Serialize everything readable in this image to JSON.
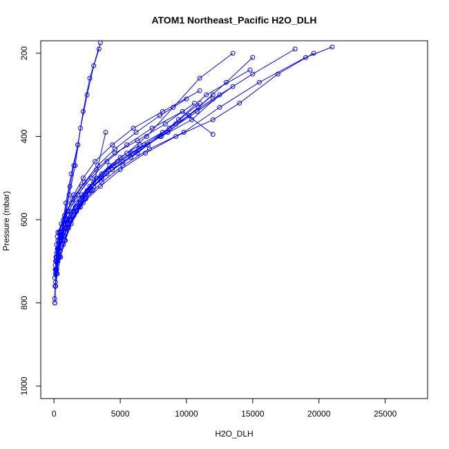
{
  "chart_data": {
    "type": "line",
    "title": "ATOM1 Northeast_Pacific H2O_DLH",
    "xlabel": "H2O_DLH",
    "ylabel": "Pressure (mbar)",
    "x_axis": {
      "range": [
        -1000,
        28200
      ],
      "ticks": [
        0,
        5000,
        10000,
        15000,
        20000,
        25000
      ]
    },
    "y_axis": {
      "range": [
        1030,
        170
      ],
      "reversed": true,
      "ticks": [
        200,
        400,
        600,
        800,
        1000
      ]
    },
    "grid": false,
    "legend": "none",
    "marker": "open-circle",
    "series_color": "#0000ff",
    "series": [
      {
        "x": [
          60,
          120,
          180,
          260,
          400,
          600,
          900,
          1300,
          1800,
          2200,
          2700,
          3500
        ],
        "y": [
          800,
          760,
          730,
          700,
          670,
          620,
          560,
          490,
          420,
          340,
          260,
          175
        ]
      },
      {
        "x": [
          50,
          110,
          200,
          330,
          520,
          800,
          1150,
          1600,
          2000,
          2500,
          3000,
          3400
        ],
        "y": [
          790,
          750,
          720,
          690,
          650,
          600,
          540,
          470,
          380,
          300,
          230,
          190
        ]
      },
      {
        "x": [
          70,
          150,
          300,
          500,
          800,
          1200,
          1500,
          1800
        ],
        "y": [
          800,
          720,
          680,
          640,
          590,
          520,
          470,
          420
        ]
      },
      {
        "x": [
          80,
          200,
          400,
          700,
          1100,
          1700,
          2400,
          3200,
          4200,
          5500,
          7000,
          9000,
          11000,
          13500
        ],
        "y": [
          760,
          720,
          690,
          660,
          620,
          580,
          540,
          500,
          470,
          440,
          400,
          330,
          260,
          200
        ]
      },
      {
        "x": [
          60,
          180,
          350,
          600,
          1000,
          1600,
          2500,
          3600,
          5000,
          6500,
          8200,
          10200,
          12000
        ],
        "y": [
          740,
          700,
          670,
          640,
          610,
          570,
          530,
          490,
          450,
          420,
          390,
          350,
          300
        ]
      },
      {
        "x": [
          100,
          250,
          500,
          900,
          1500,
          2400,
          3600,
          5200,
          7200,
          9800,
          12500,
          15500,
          19000,
          21000
        ],
        "y": [
          730,
          700,
          660,
          630,
          590,
          550,
          510,
          470,
          430,
          390,
          330,
          270,
          210,
          185
        ]
      },
      {
        "x": [
          90,
          220,
          450,
          800,
          1300,
          2100,
          3200,
          4800,
          6800,
          9200,
          12000,
          15000,
          18200
        ],
        "y": [
          720,
          690,
          650,
          620,
          580,
          540,
          500,
          460,
          420,
          370,
          310,
          250,
          190
        ]
      },
      {
        "x": [
          120,
          300,
          600,
          1000,
          1600,
          2600,
          4000,
          5800,
          8000,
          10800,
          13500
        ],
        "y": [
          700,
          670,
          640,
          610,
          570,
          530,
          490,
          450,
          400,
          340,
          280
        ]
      },
      {
        "x": [
          150,
          350,
          700,
          1200,
          2000,
          3000,
          4400,
          6300,
          8700,
          11000
        ],
        "y": [
          690,
          660,
          630,
          600,
          560,
          520,
          480,
          440,
          380,
          320
        ]
      },
      {
        "x": [
          200,
          450,
          900,
          1500,
          2400,
          3600,
          5200,
          7100,
          9400,
          11500,
          14800
        ],
        "y": [
          680,
          650,
          610,
          580,
          540,
          500,
          460,
          420,
          360,
          300,
          240
        ]
      },
      {
        "x": [
          250,
          500,
          1000,
          1700,
          2700,
          4100,
          5900,
          8100,
          10400,
          12500
        ],
        "y": [
          670,
          640,
          600,
          560,
          520,
          480,
          440,
          400,
          360,
          300
        ]
      },
      {
        "x": [
          300,
          600,
          1100,
          1900,
          3000,
          4500,
          6400,
          8600,
          10900,
          13000,
          15000
        ],
        "y": [
          650,
          620,
          590,
          550,
          510,
          470,
          430,
          390,
          330,
          270,
          210
        ]
      },
      {
        "x": [
          100,
          300,
          700,
          1300,
          2200,
          3500,
          5000,
          6900,
          9200,
          12000,
          14000,
          16900,
          19600
        ],
        "y": [
          710,
          680,
          640,
          600,
          560,
          520,
          480,
          440,
          400,
          360,
          320,
          250,
          200
        ]
      },
      {
        "x": [
          200,
          400,
          800,
          1400,
          2300,
          3300,
          4600,
          6200,
          8000,
          10000
        ],
        "y": [
          660,
          630,
          590,
          550,
          510,
          470,
          430,
          390,
          350,
          310
        ]
      },
      {
        "x": [
          150,
          300,
          600,
          1000,
          1500,
          2200,
          3100,
          4400,
          6000,
          8200,
          11000
        ],
        "y": [
          690,
          650,
          620,
          580,
          540,
          500,
          460,
          420,
          380,
          340,
          290
        ]
      },
      {
        "x": [
          250,
          550,
          1100,
          1800,
          2800,
          4000,
          5500,
          7400,
          9700,
          12000
        ],
        "y": [
          640,
          610,
          580,
          540,
          500,
          460,
          420,
          380,
          340,
          395
        ]
      },
      {
        "x": [
          300,
          700,
          1300,
          2100,
          3200,
          4600,
          6300,
          8400,
          10600
        ],
        "y": [
          630,
          600,
          560,
          520,
          480,
          440,
          410,
          370,
          320
        ]
      },
      {
        "x": [
          100,
          250,
          500,
          850,
          1300,
          1900,
          2700,
          3800
        ],
        "y": [
          760,
          730,
          690,
          650,
          610,
          570,
          530,
          490
        ]
      },
      {
        "x": [
          180,
          420,
          800,
          1300,
          2000,
          2900,
          3900
        ],
        "y": [
          730,
          690,
          650,
          610,
          570,
          530,
          390
        ]
      }
    ]
  }
}
